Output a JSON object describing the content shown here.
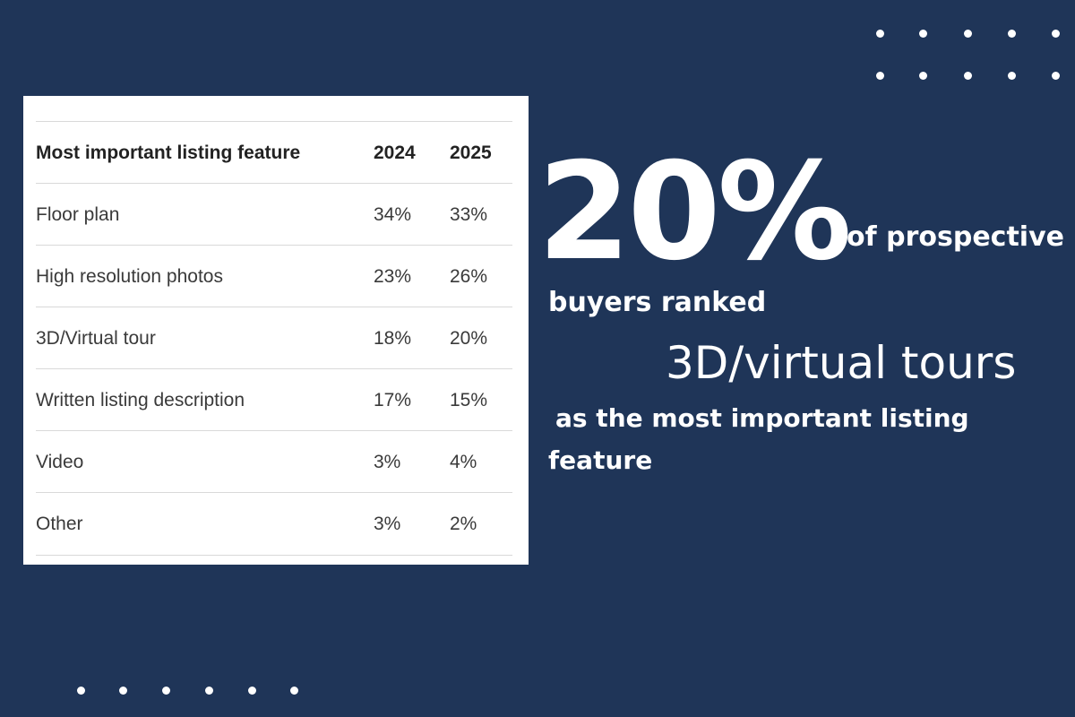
{
  "table": {
    "header": [
      "Most important listing feature",
      "2024",
      "2025"
    ],
    "rows": [
      [
        "Floor plan",
        "34%",
        "33%"
      ],
      [
        "High resolution photos",
        "23%",
        "26%"
      ],
      [
        "3D/Virtual tour",
        "18%",
        "20%"
      ],
      [
        "Written listing description",
        "17%",
        "15%"
      ],
      [
        "Video",
        "3%",
        "4%"
      ],
      [
        "Other",
        "3%",
        "2%"
      ]
    ]
  },
  "callout": {
    "big_number": "20%",
    "line1": "of prospective",
    "line2": "buyers ranked",
    "highlight": "3D/virtual tours",
    "line3": "as the most important listing",
    "line4": "feature"
  }
}
